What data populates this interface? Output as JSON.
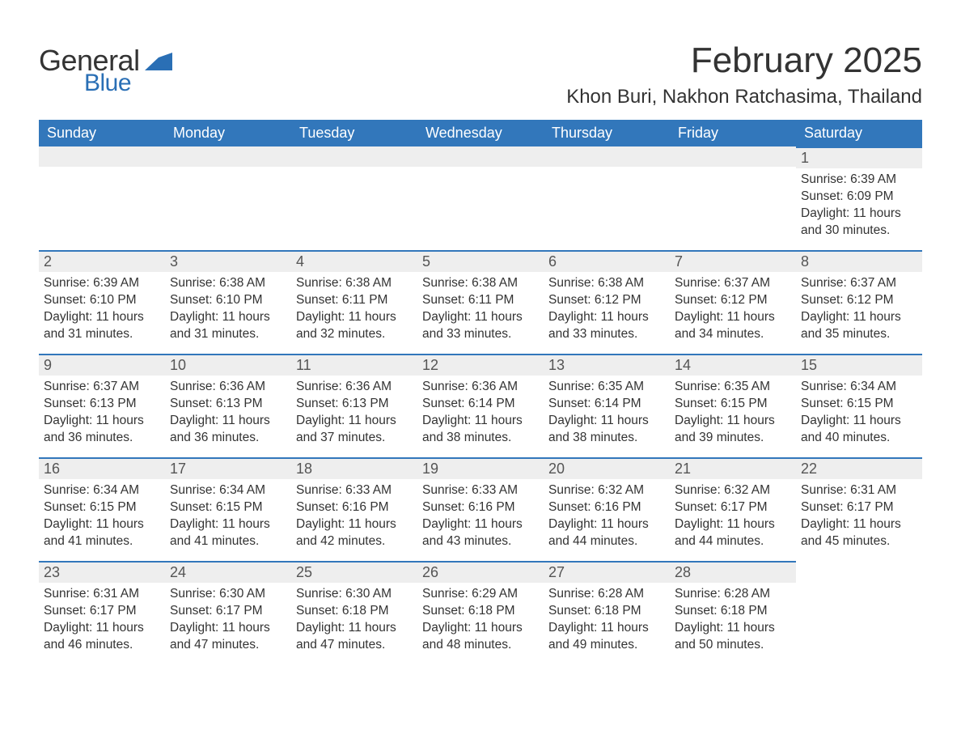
{
  "brand": {
    "text_general": "General",
    "text_blue": "Blue",
    "flag_color": "#2a6fb5"
  },
  "title": {
    "month_year": "February 2025",
    "location": "Khon Buri, Nakhon Ratchasima, Thailand"
  },
  "calendar": {
    "header_bg": "#3277bb",
    "header_fg": "#ffffff",
    "daynum_bg": "#eeeeee",
    "daynum_border": "#3277bb",
    "text_color": "#333333",
    "day_headers": [
      "Sunday",
      "Monday",
      "Tuesday",
      "Wednesday",
      "Thursday",
      "Friday",
      "Saturday"
    ],
    "weeks": [
      [
        null,
        null,
        null,
        null,
        null,
        null,
        {
          "n": "1",
          "sunrise": "6:39 AM",
          "sunset": "6:09 PM",
          "daylight": "11 hours and 30 minutes."
        }
      ],
      [
        {
          "n": "2",
          "sunrise": "6:39 AM",
          "sunset": "6:10 PM",
          "daylight": "11 hours and 31 minutes."
        },
        {
          "n": "3",
          "sunrise": "6:38 AM",
          "sunset": "6:10 PM",
          "daylight": "11 hours and 31 minutes."
        },
        {
          "n": "4",
          "sunrise": "6:38 AM",
          "sunset": "6:11 PM",
          "daylight": "11 hours and 32 minutes."
        },
        {
          "n": "5",
          "sunrise": "6:38 AM",
          "sunset": "6:11 PM",
          "daylight": "11 hours and 33 minutes."
        },
        {
          "n": "6",
          "sunrise": "6:38 AM",
          "sunset": "6:12 PM",
          "daylight": "11 hours and 33 minutes."
        },
        {
          "n": "7",
          "sunrise": "6:37 AM",
          "sunset": "6:12 PM",
          "daylight": "11 hours and 34 minutes."
        },
        {
          "n": "8",
          "sunrise": "6:37 AM",
          "sunset": "6:12 PM",
          "daylight": "11 hours and 35 minutes."
        }
      ],
      [
        {
          "n": "9",
          "sunrise": "6:37 AM",
          "sunset": "6:13 PM",
          "daylight": "11 hours and 36 minutes."
        },
        {
          "n": "10",
          "sunrise": "6:36 AM",
          "sunset": "6:13 PM",
          "daylight": "11 hours and 36 minutes."
        },
        {
          "n": "11",
          "sunrise": "6:36 AM",
          "sunset": "6:13 PM",
          "daylight": "11 hours and 37 minutes."
        },
        {
          "n": "12",
          "sunrise": "6:36 AM",
          "sunset": "6:14 PM",
          "daylight": "11 hours and 38 minutes."
        },
        {
          "n": "13",
          "sunrise": "6:35 AM",
          "sunset": "6:14 PM",
          "daylight": "11 hours and 38 minutes."
        },
        {
          "n": "14",
          "sunrise": "6:35 AM",
          "sunset": "6:15 PM",
          "daylight": "11 hours and 39 minutes."
        },
        {
          "n": "15",
          "sunrise": "6:34 AM",
          "sunset": "6:15 PM",
          "daylight": "11 hours and 40 minutes."
        }
      ],
      [
        {
          "n": "16",
          "sunrise": "6:34 AM",
          "sunset": "6:15 PM",
          "daylight": "11 hours and 41 minutes."
        },
        {
          "n": "17",
          "sunrise": "6:34 AM",
          "sunset": "6:15 PM",
          "daylight": "11 hours and 41 minutes."
        },
        {
          "n": "18",
          "sunrise": "6:33 AM",
          "sunset": "6:16 PM",
          "daylight": "11 hours and 42 minutes."
        },
        {
          "n": "19",
          "sunrise": "6:33 AM",
          "sunset": "6:16 PM",
          "daylight": "11 hours and 43 minutes."
        },
        {
          "n": "20",
          "sunrise": "6:32 AM",
          "sunset": "6:16 PM",
          "daylight": "11 hours and 44 minutes."
        },
        {
          "n": "21",
          "sunrise": "6:32 AM",
          "sunset": "6:17 PM",
          "daylight": "11 hours and 44 minutes."
        },
        {
          "n": "22",
          "sunrise": "6:31 AM",
          "sunset": "6:17 PM",
          "daylight": "11 hours and 45 minutes."
        }
      ],
      [
        {
          "n": "23",
          "sunrise": "6:31 AM",
          "sunset": "6:17 PM",
          "daylight": "11 hours and 46 minutes."
        },
        {
          "n": "24",
          "sunrise": "6:30 AM",
          "sunset": "6:17 PM",
          "daylight": "11 hours and 47 minutes."
        },
        {
          "n": "25",
          "sunrise": "6:30 AM",
          "sunset": "6:18 PM",
          "daylight": "11 hours and 47 minutes."
        },
        {
          "n": "26",
          "sunrise": "6:29 AM",
          "sunset": "6:18 PM",
          "daylight": "11 hours and 48 minutes."
        },
        {
          "n": "27",
          "sunrise": "6:28 AM",
          "sunset": "6:18 PM",
          "daylight": "11 hours and 49 minutes."
        },
        {
          "n": "28",
          "sunrise": "6:28 AM",
          "sunset": "6:18 PM",
          "daylight": "11 hours and 50 minutes."
        },
        null
      ]
    ],
    "labels": {
      "sunrise": "Sunrise: ",
      "sunset": "Sunset: ",
      "daylight": "Daylight: "
    }
  }
}
